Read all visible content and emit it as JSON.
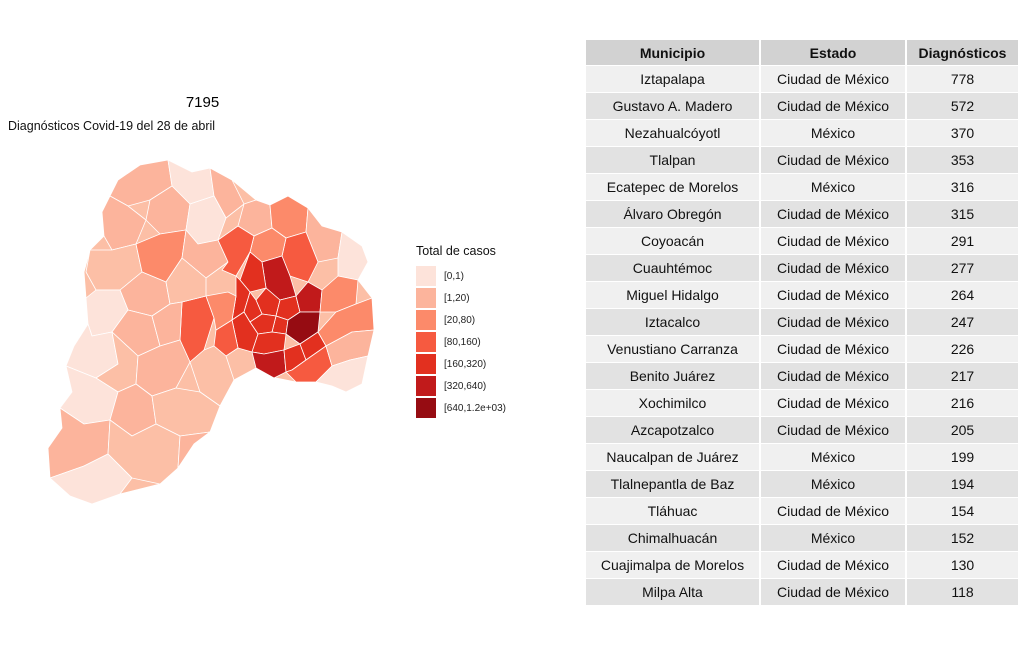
{
  "map": {
    "title": "7195",
    "subtitle": "Diagnósticos Covid-19 del 28 de abril"
  },
  "legend": {
    "title": "Total de casos",
    "items": [
      {
        "label": "[0,1)",
        "color": "#fde3da"
      },
      {
        "label": "[1,20)",
        "color": "#fcb49c"
      },
      {
        "label": "[20,80)",
        "color": "#fc8a6a"
      },
      {
        "label": "[80,160)",
        "color": "#f65a40"
      },
      {
        "label": "[160,320)",
        "color": "#e2301f"
      },
      {
        "label": "[320,640)",
        "color": "#c11a1b"
      },
      {
        "label": "[640,1.2e+03)",
        "color": "#960c12"
      }
    ]
  },
  "table": {
    "headers": [
      "Municipio",
      "Estado",
      "Diagnósticos"
    ],
    "rows": [
      [
        "Iztapalapa",
        "Ciudad de México",
        "778"
      ],
      [
        "Gustavo A. Madero",
        "Ciudad de México",
        "572"
      ],
      [
        "Nezahualcóyotl",
        "México",
        "370"
      ],
      [
        "Tlalpan",
        "Ciudad de México",
        "353"
      ],
      [
        "Ecatepec de Morelos",
        "México",
        "316"
      ],
      [
        "Álvaro Obregón",
        "Ciudad de México",
        "315"
      ],
      [
        "Coyoacán",
        "Ciudad de México",
        "291"
      ],
      [
        "Cuauhtémoc",
        "Ciudad de México",
        "277"
      ],
      [
        "Miguel Hidalgo",
        "Ciudad de México",
        "264"
      ],
      [
        "Iztacalco",
        "Ciudad de México",
        "247"
      ],
      [
        "Venustiano Carranza",
        "Ciudad de México",
        "226"
      ],
      [
        "Benito Juárez",
        "Ciudad de México",
        "217"
      ],
      [
        "Xochimilco",
        "Ciudad de México",
        "216"
      ],
      [
        "Azcapotzalco",
        "Ciudad de México",
        "205"
      ],
      [
        "Naucalpan de Juárez",
        "México",
        "199"
      ],
      [
        "Tlalnepantla de Baz",
        "México",
        "194"
      ],
      [
        "Tláhuac",
        "Ciudad de México",
        "154"
      ],
      [
        "Chimalhuacán",
        "México",
        "152"
      ],
      [
        "Cuajimalpa de Morelos",
        "Ciudad de México",
        "130"
      ],
      [
        "Milpa Alta",
        "Ciudad de México",
        "118"
      ]
    ]
  }
}
